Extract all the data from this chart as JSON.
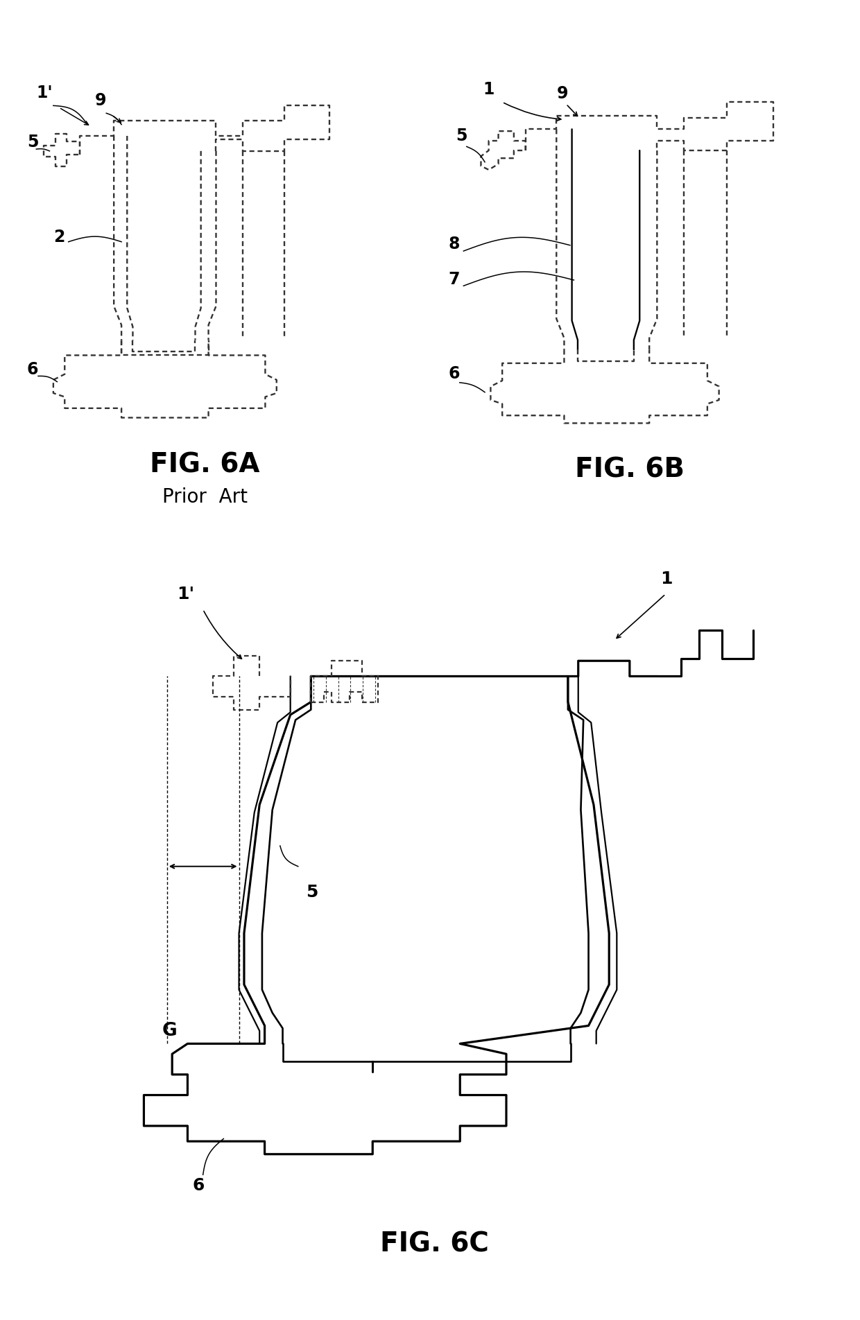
{
  "background_color": "#ffffff",
  "line_color": "#000000",
  "dashed_color": "#333333",
  "fig6a_label": "FIG. 6A",
  "fig6b_label": "FIG. 6B",
  "fig6c_label": "FIG. 6C",
  "prior_art_label": "Prior  Art",
  "label_fontsize": 28,
  "caption_fontsize": 20,
  "ref_fontsize": 16,
  "dpi": 100,
  "figsize": [
    12.4,
    19.04
  ]
}
